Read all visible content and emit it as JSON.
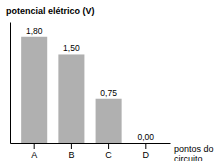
{
  "chart_data": {
    "type": "bar",
    "title": "potencial elétrico (V)",
    "xlabel": "pontos do\ncircuito",
    "categories": [
      "A",
      "B",
      "C",
      "D"
    ],
    "values": [
      1.8,
      1.5,
      0.75,
      0.0
    ],
    "value_labels": [
      "1,80",
      "1,50",
      "0,75",
      "0,00"
    ],
    "data_labels": true,
    "color": "#b0b0b0",
    "ylim": [
      0,
      2.05
    ],
    "yticks": [],
    "tick_labels": "x",
    "grid": false
  }
}
